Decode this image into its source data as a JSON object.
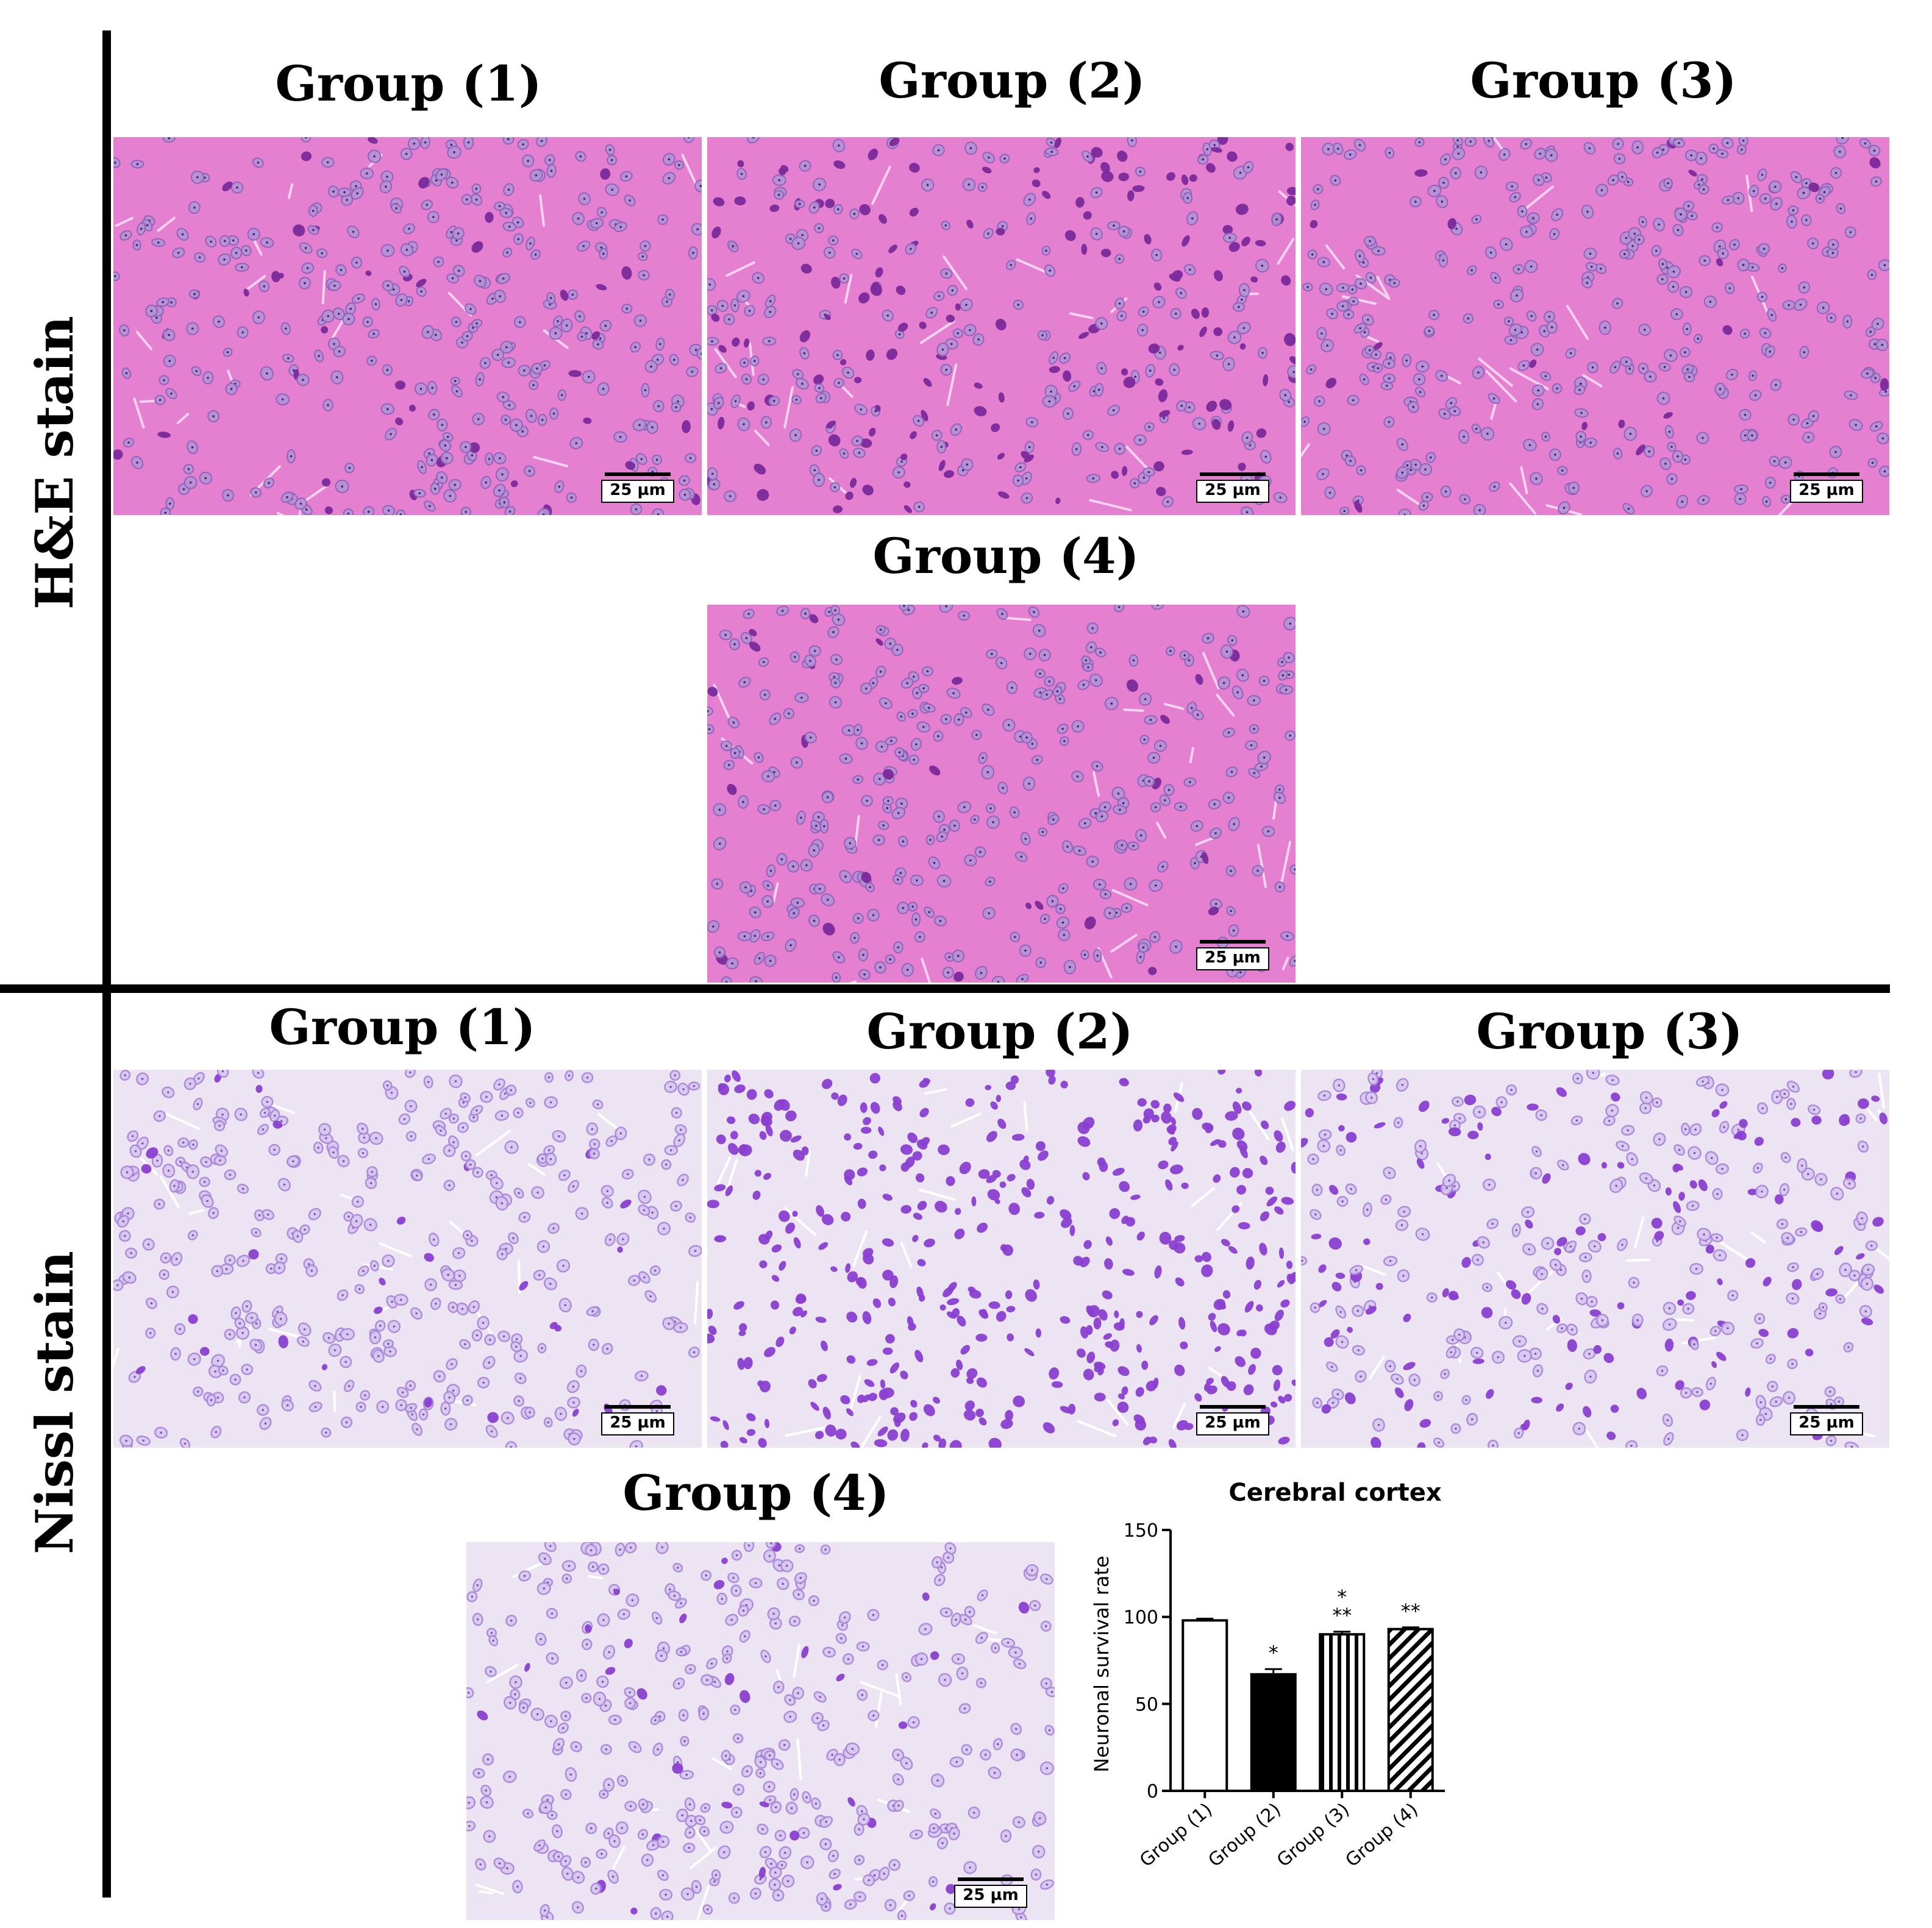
{
  "sections": {
    "he": {
      "label": "H&E stain"
    },
    "nissl": {
      "label": "Nissl stain"
    }
  },
  "he_panels": [
    {
      "title": "Group (1)",
      "scale": "25 µm"
    },
    {
      "title": "Group (2)",
      "scale": "25 µm"
    },
    {
      "title": "Group (3)",
      "scale": "25 µm"
    },
    {
      "title": "Group (4)",
      "scale": "25 µm"
    }
  ],
  "nissl_panels": [
    {
      "title": "Group (1)",
      "scale": "25 µm"
    },
    {
      "title": "Group (2)",
      "scale": "25 µm"
    },
    {
      "title": "Group (3)",
      "scale": "25 µm"
    },
    {
      "title": "Group (4)",
      "scale": "25 µm"
    }
  ],
  "colors": {
    "he_bg": "#e57fd0",
    "he_cell": "#8a5fb8",
    "he_dark": "#7a2a9a",
    "nissl_bg": "#ece4f2",
    "nissl_cell": "#a784d8",
    "nissl_dark": "#8a3fd0"
  },
  "chart_data": {
    "type": "bar",
    "title": "Cerebral cortex",
    "ylabel": "Neuronal survival rate",
    "xlabel": "",
    "ylim": [
      0,
      150
    ],
    "yticks": [
      0,
      50,
      100,
      150
    ],
    "categories": [
      "Group (1)",
      "Group (2)",
      "Group (3)",
      "Group (4)"
    ],
    "values": [
      98,
      67,
      90,
      93
    ],
    "errors": [
      1,
      3,
      1.5,
      1
    ],
    "fills": [
      "white",
      "black",
      "vertical-stripes",
      "diagonal-stripes"
    ],
    "annotations": [
      {
        "category": "Group (2)",
        "lines": [
          "*"
        ]
      },
      {
        "category": "Group (3)",
        "lines": [
          "*",
          "**"
        ]
      },
      {
        "category": "Group (4)",
        "lines": [
          "**"
        ]
      }
    ]
  }
}
